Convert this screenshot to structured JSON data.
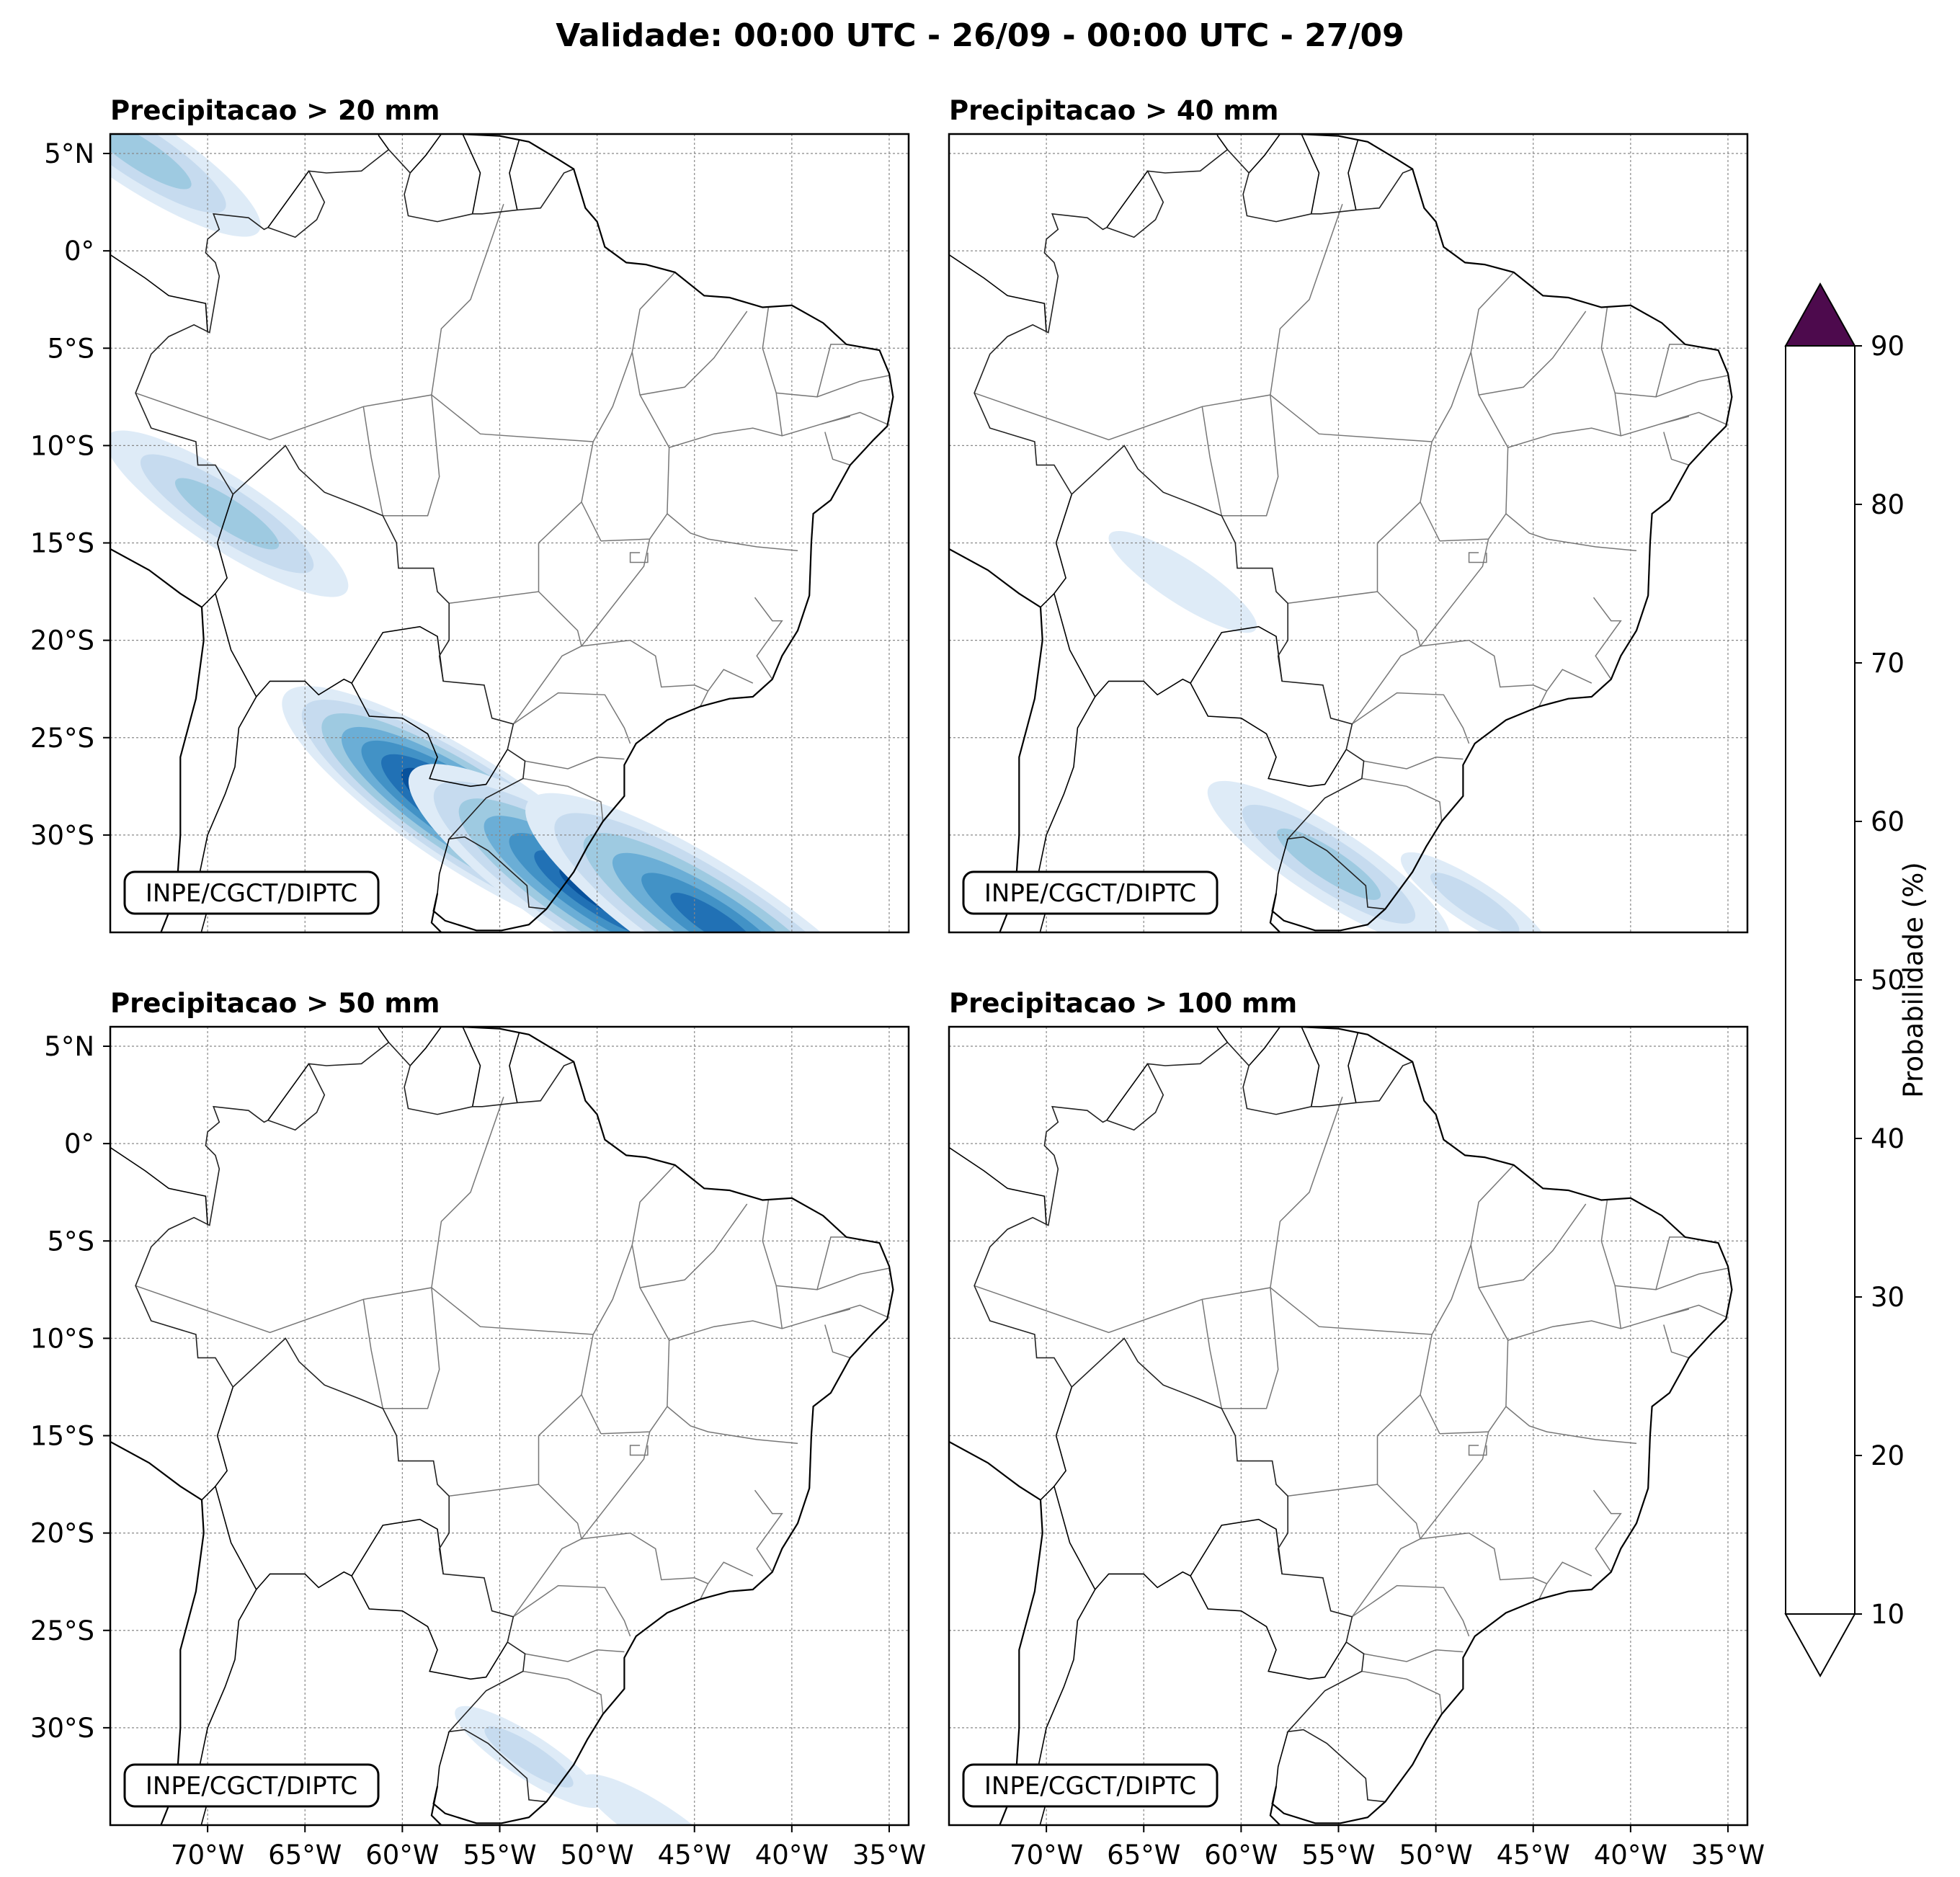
{
  "figure": {
    "title": "Validade: 00:00 UTC - 26/09 - 00:00 UTC - 27/09"
  },
  "panels": [
    {
      "title": "Precipitacao > 20 mm",
      "threshold_mm": 20,
      "credit": "INPE/CGCT/DIPTC",
      "signal": [
        {
          "lon": -56.5,
          "lat": -29.0,
          "prob": 90
        },
        {
          "lon": -50.0,
          "lat": -33.0,
          "prob": 70
        },
        {
          "lon": -44.0,
          "lat": -34.5,
          "prob": 60
        },
        {
          "lon": -69.0,
          "lat": -13.5,
          "prob": 30
        },
        {
          "lon": -73.5,
          "lat": 5.0,
          "prob": 30
        }
      ]
    },
    {
      "title": "Precipitacao > 40 mm",
      "threshold_mm": 40,
      "credit": "INPE/CGCT/DIPTC",
      "signal": [
        {
          "lon": -55.5,
          "lat": -31.5,
          "prob": 30
        },
        {
          "lon": -48.0,
          "lat": -33.5,
          "prob": 20
        },
        {
          "lon": -63.0,
          "lat": -17.0,
          "prob": 10
        }
      ]
    },
    {
      "title": "Precipitacao > 50 mm",
      "threshold_mm": 50,
      "credit": "INPE/CGCT/DIPTC",
      "signal": [
        {
          "lon": -53.5,
          "lat": -31.5,
          "prob": 20
        },
        {
          "lon": -47.0,
          "lat": -35.0,
          "prob": 10
        }
      ]
    },
    {
      "title": "Precipitacao > 100 mm",
      "threshold_mm": 100,
      "credit": "INPE/CGCT/DIPTC",
      "signal": []
    }
  ],
  "map_axes": {
    "lon_range": [
      -75,
      -34
    ],
    "lat_range": [
      -35,
      6
    ],
    "lon_ticks": [
      "70°W",
      "65°W",
      "60°W",
      "55°W",
      "50°W",
      "45°W",
      "40°W",
      "35°W"
    ],
    "lon_values": [
      -70,
      -65,
      -60,
      -55,
      -50,
      -45,
      -40,
      -35
    ],
    "lat_ticks": [
      "5°N",
      "0°",
      "5°S",
      "10°S",
      "15°S",
      "20°S",
      "25°S",
      "30°S"
    ],
    "lat_values": [
      5,
      0,
      -5,
      -10,
      -15,
      -20,
      -25,
      -30
    ],
    "gridlines": true
  },
  "colorbar": {
    "label": "Probabilidade (%)",
    "ticks": [
      "10",
      "20",
      "30",
      "40",
      "50",
      "60",
      "70",
      "80",
      "90"
    ],
    "levels": [
      10,
      20,
      30,
      40,
      50,
      60,
      70,
      80,
      90
    ],
    "colors": [
      "#deebf7",
      "#c6dbef",
      "#9ecae1",
      "#6baed6",
      "#4292c6",
      "#2171b5",
      "#08519c",
      "#08306b"
    ],
    "over_color": "#4d0a4d",
    "under_color": "#ffffff",
    "extend": "both"
  }
}
